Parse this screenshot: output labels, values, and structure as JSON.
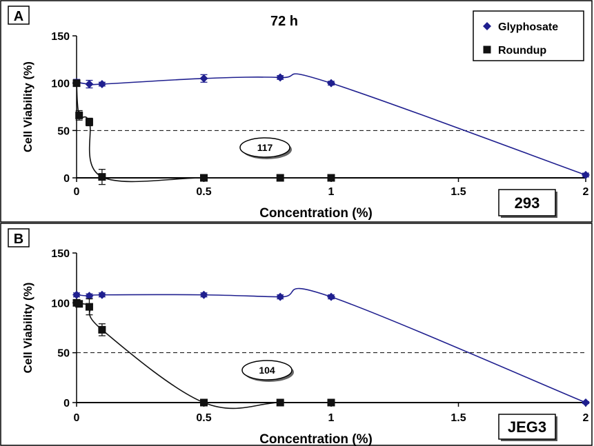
{
  "chart_data": [
    {
      "type": "line",
      "panel_label": "A",
      "title": "72 h",
      "xlabel": "Concentration (%)",
      "ylabel": "Cell Viability (%)",
      "xlim": [
        0,
        2
      ],
      "ylim": [
        0,
        150
      ],
      "xticks": [
        0,
        0.5,
        1,
        1.5,
        2
      ],
      "yticks": [
        0,
        50,
        100,
        150
      ],
      "reference_line_y": 50,
      "annotation": "117",
      "cell_line": "293",
      "legend": "top-right",
      "series": [
        {
          "name": "Glyphosate",
          "color": "#1f1f8f",
          "marker": "diamond",
          "points": [
            {
              "x": 0,
              "y": 101,
              "err": 3
            },
            {
              "x": 0.05,
              "y": 99,
              "err": 4
            },
            {
              "x": 0.1,
              "y": 99,
              "err": 2
            },
            {
              "x": 0.5,
              "y": 105,
              "err": 4
            },
            {
              "x": 0.8,
              "y": 106,
              "err": 2
            },
            {
              "x": 1,
              "y": 100,
              "err": 2
            },
            {
              "x": 2,
              "y": 3,
              "err": 2
            }
          ]
        },
        {
          "name": "Roundup",
          "color": "#111111",
          "marker": "square",
          "points": [
            {
              "x": 0,
              "y": 100,
              "err": 3
            },
            {
              "x": 0.01,
              "y": 66,
              "err": 5
            },
            {
              "x": 0.05,
              "y": 59,
              "err": 4
            },
            {
              "x": 0.1,
              "y": 1,
              "err": 8
            },
            {
              "x": 0.5,
              "y": 0,
              "err": 0
            },
            {
              "x": 0.8,
              "y": 0,
              "err": 0
            },
            {
              "x": 1,
              "y": 0,
              "err": 0
            }
          ]
        }
      ]
    },
    {
      "type": "line",
      "panel_label": "B",
      "title": "",
      "xlabel": "Concentration (%)",
      "ylabel": "Cell Viability (%)",
      "xlim": [
        0,
        2
      ],
      "ylim": [
        0,
        150
      ],
      "xticks": [
        0,
        0.5,
        1,
        1.5,
        2
      ],
      "yticks": [
        0,
        50,
        100,
        150
      ],
      "reference_line_y": 50,
      "annotation": "104",
      "cell_line": "JEG3",
      "series": [
        {
          "name": "Glyphosate",
          "color": "#1f1f8f",
          "marker": "diamond",
          "points": [
            {
              "x": 0,
              "y": 108,
              "err": 2
            },
            {
              "x": 0.05,
              "y": 107,
              "err": 2
            },
            {
              "x": 0.1,
              "y": 108,
              "err": 2
            },
            {
              "x": 0.5,
              "y": 108,
              "err": 2
            },
            {
              "x": 0.8,
              "y": 106,
              "err": 2
            },
            {
              "x": 1,
              "y": 106,
              "err": 2
            },
            {
              "x": 2,
              "y": 0,
              "err": 1
            }
          ]
        },
        {
          "name": "Roundup",
          "color": "#111111",
          "marker": "square",
          "points": [
            {
              "x": 0,
              "y": 100,
              "err": 3
            },
            {
              "x": 0.01,
              "y": 99,
              "err": 3
            },
            {
              "x": 0.05,
              "y": 96,
              "err": 8
            },
            {
              "x": 0.1,
              "y": 73,
              "err": 6
            },
            {
              "x": 0.5,
              "y": 0,
              "err": 0
            },
            {
              "x": 0.8,
              "y": 0,
              "err": 0
            },
            {
              "x": 1,
              "y": 0,
              "err": 0
            }
          ]
        }
      ]
    }
  ]
}
